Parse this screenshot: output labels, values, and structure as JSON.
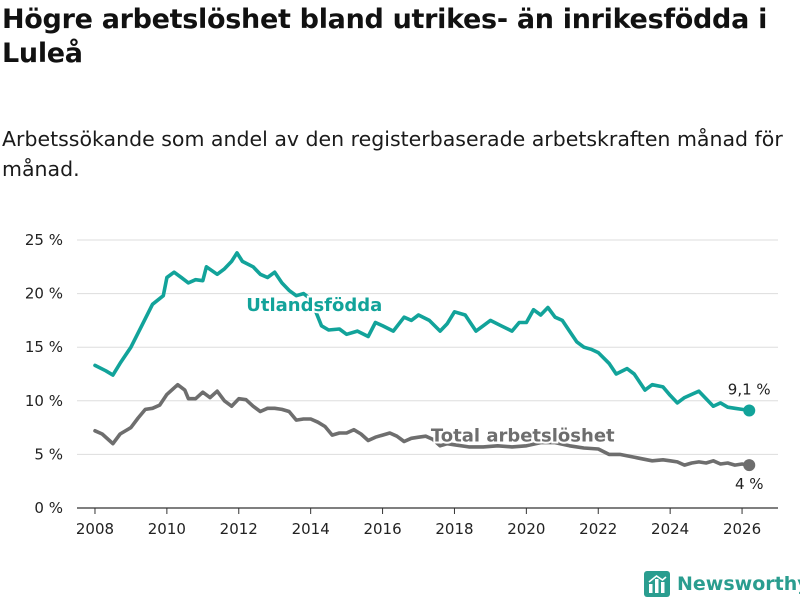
{
  "title": "Högre arbetslöshet bland utrikes- än inrikesfödda i Luleå",
  "subtitle": "Arbetssökande som andel av den registerbaserade arbetskraften månad för månad.",
  "brand": {
    "name": "Newsworthy",
    "icon": "newsworthy-logo-icon"
  },
  "colors": {
    "foreign_born": "#12a39a",
    "total": "#6e6e6e",
    "grid": "#dddddd",
    "axis": "#333333"
  },
  "chart_data": {
    "type": "line",
    "title": "Högre arbetslöshet bland utrikes- än inrikesfödda i Luleå",
    "xlabel": "",
    "ylabel": "",
    "xlim": [
      2007.5,
      2027
    ],
    "ylim": [
      0,
      25
    ],
    "x_ticks": [
      2008,
      2010,
      2012,
      2014,
      2016,
      2018,
      2020,
      2022,
      2024,
      2026
    ],
    "x_tick_labels": [
      "2008",
      "2010",
      "2012",
      "2014",
      "2016",
      "2018",
      "2020",
      "2022",
      "2024",
      "2026"
    ],
    "y_ticks": [
      0,
      5,
      10,
      15,
      20,
      25
    ],
    "y_tick_labels": [
      "0 %",
      "5 %",
      "10 %",
      "15 %",
      "20 %",
      "25 %"
    ],
    "grid": true,
    "series": [
      {
        "name": "Utlandsfödda",
        "color": "#12a39a",
        "end_label": "9,1 %",
        "points": [
          [
            2008.0,
            13.3
          ],
          [
            2008.3,
            12.8
          ],
          [
            2008.5,
            12.4
          ],
          [
            2008.7,
            13.5
          ],
          [
            2009.0,
            15.0
          ],
          [
            2009.3,
            17.0
          ],
          [
            2009.6,
            19.0
          ],
          [
            2009.9,
            19.8
          ],
          [
            2010.0,
            21.5
          ],
          [
            2010.2,
            22.0
          ],
          [
            2010.4,
            21.5
          ],
          [
            2010.6,
            21.0
          ],
          [
            2010.8,
            21.3
          ],
          [
            2011.0,
            21.2
          ],
          [
            2011.1,
            22.5
          ],
          [
            2011.4,
            21.8
          ],
          [
            2011.6,
            22.3
          ],
          [
            2011.8,
            23.0
          ],
          [
            2011.95,
            23.8
          ],
          [
            2012.1,
            23.0
          ],
          [
            2012.4,
            22.5
          ],
          [
            2012.6,
            21.8
          ],
          [
            2012.8,
            21.5
          ],
          [
            2013.0,
            22.0
          ],
          [
            2013.2,
            21.0
          ],
          [
            2013.4,
            20.3
          ],
          [
            2013.6,
            19.8
          ],
          [
            2013.8,
            20.0
          ],
          [
            2014.0,
            19.5
          ],
          [
            2014.3,
            17.0
          ],
          [
            2014.5,
            16.6
          ],
          [
            2014.8,
            16.7
          ],
          [
            2015.0,
            16.2
          ],
          [
            2015.3,
            16.5
          ],
          [
            2015.6,
            16.0
          ],
          [
            2015.8,
            17.3
          ],
          [
            2016.0,
            17.0
          ],
          [
            2016.3,
            16.5
          ],
          [
            2016.6,
            17.8
          ],
          [
            2016.8,
            17.5
          ],
          [
            2017.0,
            18.0
          ],
          [
            2017.3,
            17.5
          ],
          [
            2017.6,
            16.5
          ],
          [
            2017.8,
            17.2
          ],
          [
            2018.0,
            18.3
          ],
          [
            2018.3,
            18.0
          ],
          [
            2018.6,
            16.5
          ],
          [
            2018.8,
            17.0
          ],
          [
            2019.0,
            17.5
          ],
          [
            2019.3,
            17.0
          ],
          [
            2019.6,
            16.5
          ],
          [
            2019.8,
            17.3
          ],
          [
            2020.0,
            17.3
          ],
          [
            2020.2,
            18.5
          ],
          [
            2020.4,
            18.0
          ],
          [
            2020.6,
            18.7
          ],
          [
            2020.8,
            17.8
          ],
          [
            2021.0,
            17.5
          ],
          [
            2021.2,
            16.5
          ],
          [
            2021.4,
            15.5
          ],
          [
            2021.6,
            15.0
          ],
          [
            2021.8,
            14.8
          ],
          [
            2022.0,
            14.5
          ],
          [
            2022.3,
            13.5
          ],
          [
            2022.5,
            12.5
          ],
          [
            2022.8,
            13.0
          ],
          [
            2023.0,
            12.5
          ],
          [
            2023.3,
            11.0
          ],
          [
            2023.5,
            11.5
          ],
          [
            2023.8,
            11.3
          ],
          [
            2024.0,
            10.5
          ],
          [
            2024.2,
            9.8
          ],
          [
            2024.4,
            10.3
          ],
          [
            2024.6,
            10.6
          ],
          [
            2024.8,
            10.9
          ],
          [
            2025.0,
            10.2
          ],
          [
            2025.2,
            9.5
          ],
          [
            2025.4,
            9.8
          ],
          [
            2025.6,
            9.4
          ],
          [
            2025.8,
            9.3
          ],
          [
            2026.0,
            9.2
          ],
          [
            2026.2,
            9.1
          ]
        ]
      },
      {
        "name": "Total arbetslöshet",
        "color": "#6e6e6e",
        "end_label": "4 %",
        "points": [
          [
            2008.0,
            7.2
          ],
          [
            2008.2,
            6.9
          ],
          [
            2008.4,
            6.3
          ],
          [
            2008.5,
            6.0
          ],
          [
            2008.7,
            6.9
          ],
          [
            2009.0,
            7.5
          ],
          [
            2009.2,
            8.4
          ],
          [
            2009.4,
            9.2
          ],
          [
            2009.6,
            9.3
          ],
          [
            2009.8,
            9.6
          ],
          [
            2010.0,
            10.6
          ],
          [
            2010.2,
            11.2
          ],
          [
            2010.3,
            11.5
          ],
          [
            2010.5,
            11.0
          ],
          [
            2010.6,
            10.2
          ],
          [
            2010.8,
            10.2
          ],
          [
            2011.0,
            10.8
          ],
          [
            2011.2,
            10.3
          ],
          [
            2011.4,
            10.9
          ],
          [
            2011.6,
            10.0
          ],
          [
            2011.8,
            9.5
          ],
          [
            2012.0,
            10.2
          ],
          [
            2012.2,
            10.1
          ],
          [
            2012.4,
            9.5
          ],
          [
            2012.6,
            9.0
          ],
          [
            2012.8,
            9.3
          ],
          [
            2013.0,
            9.3
          ],
          [
            2013.2,
            9.2
          ],
          [
            2013.4,
            9.0
          ],
          [
            2013.6,
            8.2
          ],
          [
            2013.8,
            8.3
          ],
          [
            2014.0,
            8.3
          ],
          [
            2014.2,
            8.0
          ],
          [
            2014.4,
            7.6
          ],
          [
            2014.6,
            6.8
          ],
          [
            2014.8,
            7.0
          ],
          [
            2015.0,
            7.0
          ],
          [
            2015.2,
            7.3
          ],
          [
            2015.4,
            6.9
          ],
          [
            2015.6,
            6.3
          ],
          [
            2015.8,
            6.6
          ],
          [
            2016.0,
            6.8
          ],
          [
            2016.2,
            7.0
          ],
          [
            2016.4,
            6.7
          ],
          [
            2016.6,
            6.2
          ],
          [
            2016.8,
            6.5
          ],
          [
            2017.0,
            6.6
          ],
          [
            2017.2,
            6.7
          ],
          [
            2017.4,
            6.4
          ],
          [
            2017.6,
            5.8
          ],
          [
            2017.8,
            6.0
          ],
          [
            2018.0,
            5.9
          ],
          [
            2018.4,
            5.7
          ],
          [
            2018.8,
            5.7
          ],
          [
            2019.2,
            5.8
          ],
          [
            2019.6,
            5.7
          ],
          [
            2020.0,
            5.8
          ],
          [
            2020.4,
            6.1
          ],
          [
            2020.8,
            6.1
          ],
          [
            2021.2,
            5.8
          ],
          [
            2021.6,
            5.6
          ],
          [
            2022.0,
            5.5
          ],
          [
            2022.3,
            5.0
          ],
          [
            2022.6,
            5.0
          ],
          [
            2022.9,
            4.8
          ],
          [
            2023.2,
            4.6
          ],
          [
            2023.5,
            4.4
          ],
          [
            2023.8,
            4.5
          ],
          [
            2024.0,
            4.4
          ],
          [
            2024.2,
            4.3
          ],
          [
            2024.4,
            4.0
          ],
          [
            2024.6,
            4.2
          ],
          [
            2024.8,
            4.3
          ],
          [
            2025.0,
            4.2
          ],
          [
            2025.2,
            4.4
          ],
          [
            2025.4,
            4.1
          ],
          [
            2025.6,
            4.2
          ],
          [
            2025.8,
            4.0
          ],
          [
            2026.0,
            4.1
          ],
          [
            2026.2,
            4.0
          ]
        ]
      }
    ]
  }
}
